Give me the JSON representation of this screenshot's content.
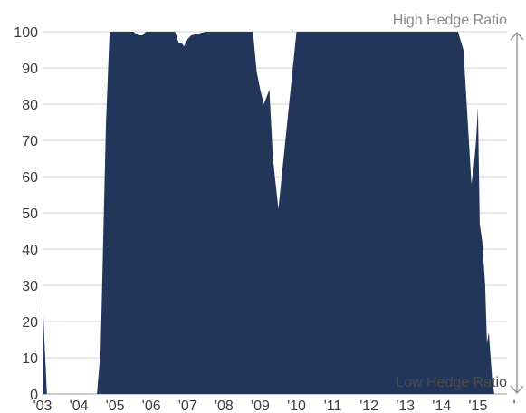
{
  "chart_data": {
    "type": "area",
    "title": "",
    "xlabel": "",
    "ylabel": "",
    "ylim": [
      0,
      100
    ],
    "xlim": [
      2003.0,
      2016.0
    ],
    "grid": true,
    "fill_color": "#22365a",
    "grid_color": "#d0d0d0",
    "y_ticks": [
      "0",
      "10",
      "20",
      "30",
      "40",
      "50",
      "60",
      "70",
      "80",
      "90",
      "100"
    ],
    "x_tick_labels": [
      "'03",
      "'04",
      "'05",
      "'06",
      "'07",
      "'08",
      "'09",
      "'10",
      "'11",
      "'12",
      "'13",
      "'14",
      "'15",
      "'"
    ],
    "x_tick_values": [
      2003,
      2004,
      2005,
      2006,
      2007,
      2008,
      2009,
      2010,
      2011,
      2012,
      2013,
      2014,
      2015,
      2016
    ],
    "annotations": {
      "high": "High Hedge Ratio",
      "low": "Low Hedge Ratio"
    },
    "series": [
      {
        "x": [
          2003.0,
          2003.05,
          2003.12,
          2003.2,
          2004.3,
          2004.5,
          2004.6,
          2004.75,
          2004.85,
          2005.5,
          2005.65,
          2005.75,
          2005.85,
          2006.0,
          2006.3,
          2006.65,
          2006.75,
          2006.82,
          2006.9,
          2007.0,
          2007.1,
          2007.5,
          2008.0,
          2008.2,
          2008.3,
          2008.4,
          2008.5,
          2008.65,
          2008.8,
          2008.9,
          2009.0,
          2009.1,
          2009.25,
          2009.35,
          2009.5,
          2010.0,
          2011.0,
          2012.0,
          2013.0,
          2014.0,
          2014.3,
          2014.45,
          2014.6,
          2014.72,
          2014.82,
          2014.88,
          2014.95,
          2015.0,
          2015.05,
          2015.12,
          2015.2,
          2015.25,
          2015.3,
          2015.4,
          2015.45,
          2015.55,
          2015.65,
          2016.0
        ],
        "values": [
          28,
          15,
          0,
          0,
          0,
          0,
          12,
          75,
          100,
          100,
          99,
          99,
          100,
          100,
          100,
          100,
          97,
          97,
          96,
          98,
          99,
          100,
          100,
          100,
          100,
          100,
          100,
          100,
          100,
          89,
          84,
          80,
          84,
          65,
          51,
          100,
          100,
          100,
          100,
          100,
          100,
          100,
          95,
          75,
          58,
          62,
          70,
          79,
          47,
          42,
          30,
          14,
          17,
          3,
          0,
          0,
          0,
          0
        ]
      }
    ]
  }
}
